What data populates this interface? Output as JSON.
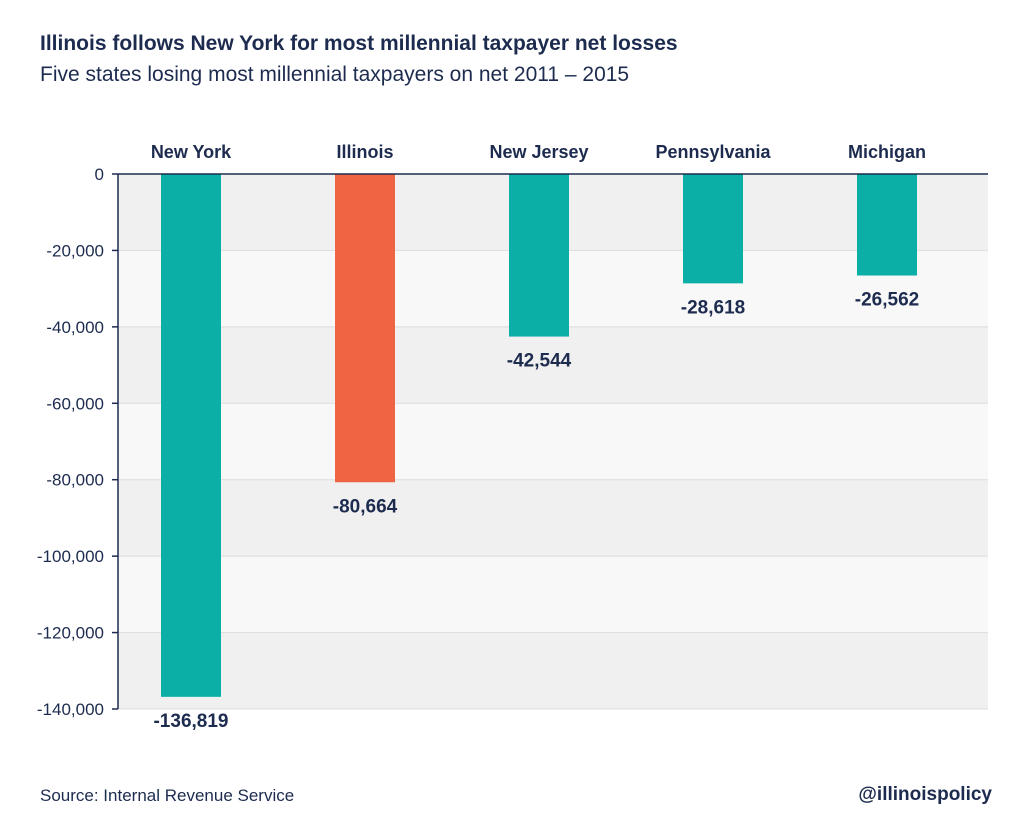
{
  "header": {
    "title": "Illinois follows New York for most millennial taxpayer net losses",
    "subtitle": "Five states losing most millennial taxpayers on net 2011 – 2015"
  },
  "footer": {
    "source": "Source: Internal Revenue Service",
    "handle": "@illinoispolicy"
  },
  "colors": {
    "teal": "#0bafa6",
    "highlight": "#f06444",
    "text": "#1d2b4f",
    "band_dark": "#f0f0f0",
    "band_light": "#f8f8f8",
    "gridline": "#dcdcdc"
  },
  "chart_data": {
    "type": "bar",
    "title": "Illinois follows New York for most millennial taxpayer net losses",
    "subtitle": "Five states losing most millennial taxpayers on net 2011 – 2015",
    "categories": [
      "New York",
      "Illinois",
      "New Jersey",
      "Pennsylvania",
      "Michigan"
    ],
    "values": [
      -136819,
      -80664,
      -42544,
      -28618,
      -26562
    ],
    "value_labels": [
      "-136,819",
      "-80,664",
      "-42,544",
      "-28,618",
      "-26,562"
    ],
    "highlight": "Illinois",
    "ylim": [
      -140000,
      0
    ],
    "yticks": [
      0,
      -20000,
      -40000,
      -60000,
      -80000,
      -100000,
      -120000,
      -140000
    ],
    "ytick_labels": [
      "0",
      "-20,000",
      "-40,000",
      "-60,000",
      "-80,000",
      "-100,000",
      "-120,000",
      "-140,000"
    ],
    "category_axis_position": "top",
    "grid": true,
    "xlabel": "",
    "ylabel": ""
  }
}
